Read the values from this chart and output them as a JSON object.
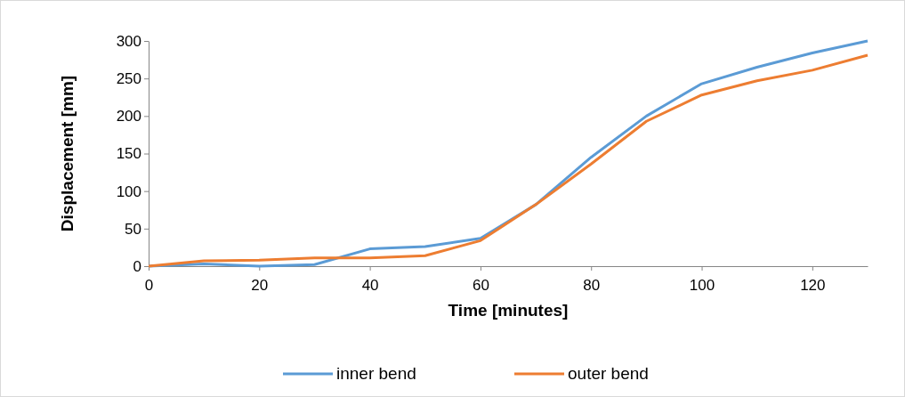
{
  "chart_data": {
    "type": "line",
    "xlabel": "Time [minutes]",
    "ylabel": "Displacement [mm]",
    "x": [
      0,
      10,
      20,
      30,
      40,
      50,
      60,
      70,
      80,
      90,
      100,
      110,
      120,
      130
    ],
    "series": [
      {
        "name": "inner bend",
        "color": "#5b9bd5",
        "values": [
          0,
          3,
          0,
          2,
          23,
          26,
          37,
          82,
          145,
          200,
          243,
          265,
          284,
          300
        ]
      },
      {
        "name": "outer bend",
        "color": "#ed7d31",
        "values": [
          0,
          7,
          8,
          11,
          11,
          14,
          34,
          82,
          136,
          193,
          228,
          247,
          261,
          281
        ]
      }
    ],
    "xlim": [
      0,
      130
    ],
    "xticks": [
      0,
      20,
      40,
      60,
      80,
      100,
      120
    ],
    "ylim": [
      0,
      300
    ],
    "yticks": [
      0,
      50,
      100,
      150,
      200,
      250,
      300
    ],
    "grid": false,
    "legend": "bottom",
    "marker": "none",
    "line_style": "solid"
  }
}
